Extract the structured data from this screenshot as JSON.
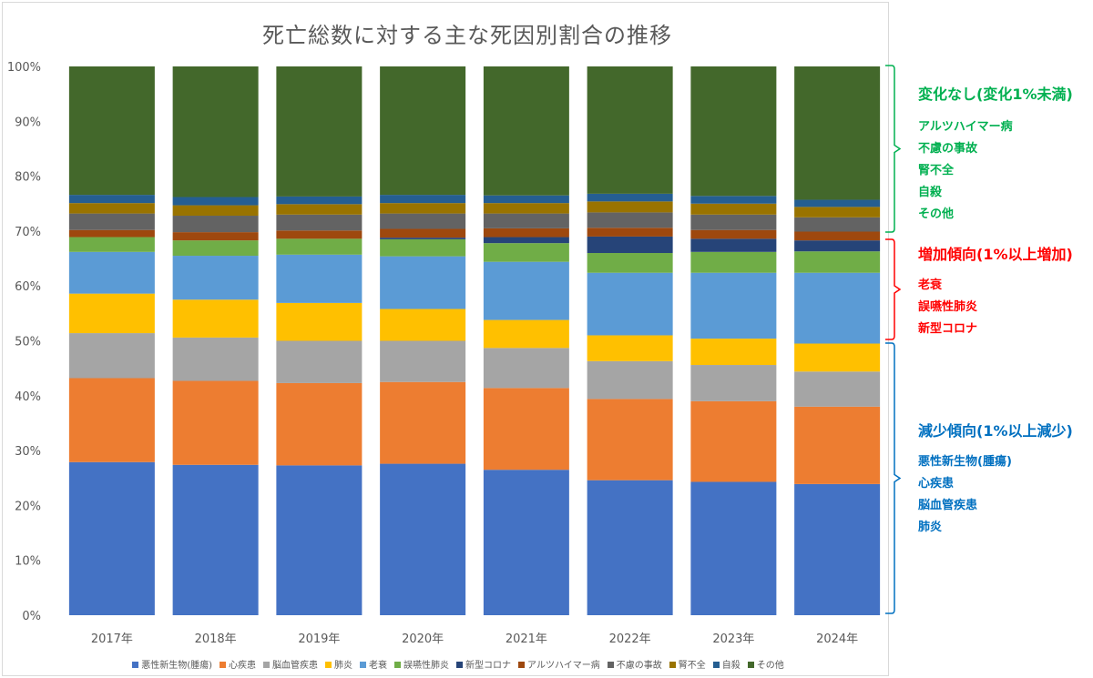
{
  "chart_data": {
    "type": "bar",
    "stacked": "percent",
    "title": "死亡総数に対する主な死因別割合の推移",
    "categories": [
      "2017年",
      "2018年",
      "2019年",
      "2020年",
      "2021年",
      "2022年",
      "2023年",
      "2024年"
    ],
    "y_ticks": [
      "0%",
      "10%",
      "20%",
      "30%",
      "40%",
      "50%",
      "60%",
      "70%",
      "80%",
      "90%",
      "100%"
    ],
    "ylim": [
      0,
      100
    ],
    "grid": false,
    "legend_position": "bottom",
    "series": [
      {
        "name": "悪性新生物(腫瘍)",
        "color": "#4472c4",
        "values": [
          27.9,
          27.4,
          27.3,
          27.6,
          26.5,
          24.6,
          24.3,
          23.9
        ]
      },
      {
        "name": "心疾患",
        "color": "#ed7d31",
        "values": [
          15.3,
          15.3,
          15.0,
          14.9,
          14.9,
          14.8,
          14.7,
          14.1
        ]
      },
      {
        "name": "脳血管疾患",
        "color": "#a5a5a5",
        "values": [
          8.2,
          7.9,
          7.7,
          7.5,
          7.3,
          6.9,
          6.6,
          6.4
        ]
      },
      {
        "name": "肺炎",
        "color": "#ffc000",
        "values": [
          7.2,
          6.9,
          6.9,
          5.8,
          5.1,
          4.7,
          4.8,
          5.1
        ]
      },
      {
        "name": "老衰",
        "color": "#5b9bd5",
        "values": [
          7.6,
          8.0,
          8.8,
          9.6,
          10.6,
          11.4,
          12.0,
          12.9
        ]
      },
      {
        "name": "誤嚥性肺炎",
        "color": "#70ad47",
        "values": [
          2.7,
          2.8,
          2.9,
          3.1,
          3.4,
          3.6,
          3.8,
          3.9
        ]
      },
      {
        "name": "新型コロナ",
        "color": "#264478",
        "values": [
          0.0,
          0.0,
          0.0,
          0.3,
          1.1,
          3.0,
          2.4,
          2.0
        ]
      },
      {
        "name": "アルツハイマー病",
        "color": "#9e480e",
        "values": [
          1.3,
          1.5,
          1.5,
          1.6,
          1.6,
          1.6,
          1.6,
          1.6
        ]
      },
      {
        "name": "不慮の事故",
        "color": "#636363",
        "values": [
          3.0,
          3.0,
          2.9,
          2.8,
          2.7,
          2.8,
          2.8,
          2.6
        ]
      },
      {
        "name": "腎不全",
        "color": "#997300",
        "values": [
          1.9,
          1.9,
          1.9,
          1.9,
          1.9,
          2.0,
          2.0,
          1.9
        ]
      },
      {
        "name": "自殺",
        "color": "#255e91",
        "values": [
          1.5,
          1.5,
          1.4,
          1.5,
          1.4,
          1.4,
          1.4,
          1.3
        ]
      },
      {
        "name": "その他",
        "color": "#43682b",
        "values": [
          23.4,
          23.8,
          23.7,
          23.4,
          23.5,
          23.2,
          23.6,
          24.3
        ]
      }
    ]
  },
  "annotations": {
    "groups": [
      {
        "heading": "変化なし(変化1%未満)",
        "color": "#00b050",
        "items": [
          "アルツハイマー病",
          "不慮の事故",
          "腎不全",
          "自殺",
          "その他"
        ]
      },
      {
        "heading": "増加傾向(1%以上増加)",
        "color": "#ff0000",
        "items": [
          "老衰",
          "誤嚥性肺炎",
          "新型コロナ"
        ]
      },
      {
        "heading": "減少傾向(1%以上減少)",
        "color": "#0070c0",
        "items": [
          "悪性新生物(腫瘍)",
          "心疾患",
          "脳血管疾患",
          "肺炎"
        ]
      }
    ]
  }
}
